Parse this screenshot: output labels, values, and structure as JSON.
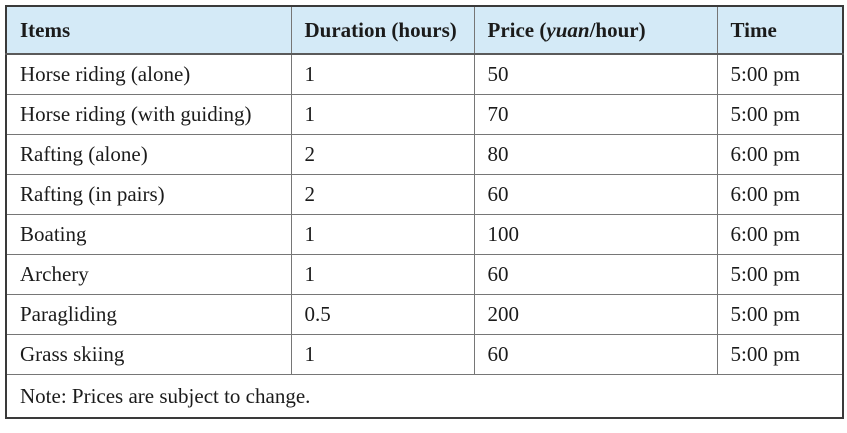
{
  "colors": {
    "header_bg": "#d4eaf7",
    "grid_line": "#767676",
    "outer_frame": "#3a3a3a",
    "text": "#1b1b1b"
  },
  "chart_data": {
    "type": "table",
    "title": "",
    "columns": [
      "Items",
      "Duration (hours)",
      "Price (yuan/hour)",
      "Time"
    ],
    "rows": [
      [
        "Horse riding (alone)",
        "1",
        "50",
        "5:00 pm"
      ],
      [
        "Horse riding (with guiding)",
        "1",
        "70",
        "5:00 pm"
      ],
      [
        "Rafting (alone)",
        "2",
        "80",
        "6:00 pm"
      ],
      [
        "Rafting (in pairs)",
        "2",
        "60",
        "6:00 pm"
      ],
      [
        "Boating",
        "1",
        "100",
        "6:00 pm"
      ],
      [
        "Archery",
        "1",
        "60",
        "5:00 pm"
      ],
      [
        "Paragliding",
        "0.5",
        "200",
        "5:00 pm"
      ],
      [
        "Grass skiing",
        "1",
        "60",
        "5:00 pm"
      ]
    ],
    "note": "Note: Prices are subject to change."
  },
  "table": {
    "headers": {
      "items": "Items",
      "duration": "Duration (hours)",
      "price_prefix": "Price (",
      "price_italic": "yuan",
      "price_suffix": "/hour)",
      "time": "Time"
    },
    "rows": [
      {
        "item": "Horse riding (alone)",
        "duration": "1",
        "price": "50",
        "time": "5:00 pm"
      },
      {
        "item": "Horse riding (with guiding)",
        "duration": "1",
        "price": "70",
        "time": "5:00 pm"
      },
      {
        "item": "Rafting (alone)",
        "duration": "2",
        "price": "80",
        "time": "6:00 pm"
      },
      {
        "item": "Rafting (in pairs)",
        "duration": "2",
        "price": "60",
        "time": "6:00 pm"
      },
      {
        "item": "Boating",
        "duration": "1",
        "price": "100",
        "time": "6:00 pm"
      },
      {
        "item": "Archery",
        "duration": "1",
        "price": "60",
        "time": "5:00 pm"
      },
      {
        "item": "Paragliding",
        "duration": "0.5",
        "price": "200",
        "time": "5:00 pm"
      },
      {
        "item": "Grass skiing",
        "duration": "1",
        "price": "60",
        "time": "5:00 pm"
      }
    ],
    "note": "Note: Prices are subject to change."
  }
}
